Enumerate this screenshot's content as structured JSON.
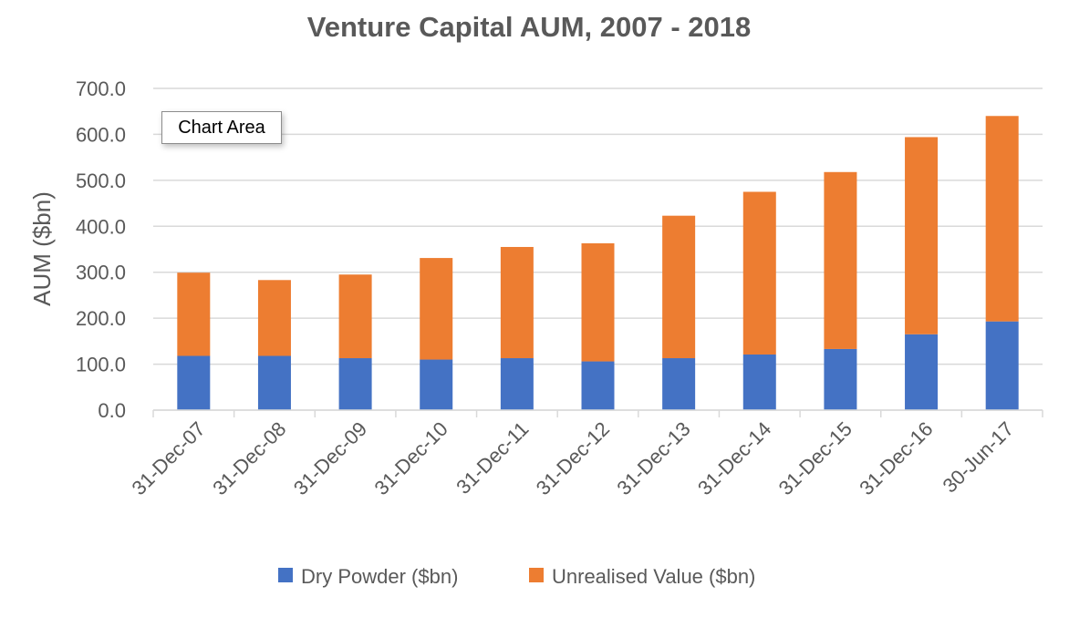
{
  "tooltip": "Chart Area",
  "colors": {
    "dry_powder": "#4472C4",
    "unrealised": "#ED7D31",
    "grid": "#D9D9D9",
    "text": "#595959"
  },
  "chart_data": {
    "type": "bar",
    "stacked": true,
    "title": "Venture Capital AUM, 2007 - 2018",
    "xlabel": "",
    "ylabel": "AUM ($bn)",
    "ylim": [
      0,
      700
    ],
    "yticks": [
      "0.0",
      "100.0",
      "200.0",
      "300.0",
      "400.0",
      "500.0",
      "600.0",
      "700.0"
    ],
    "grid": true,
    "legend_position": "bottom",
    "categories": [
      "31-Dec-07",
      "31-Dec-08",
      "31-Dec-09",
      "31-Dec-10",
      "31-Dec-11",
      "31-Dec-12",
      "31-Dec-13",
      "31-Dec-14",
      "31-Dec-15",
      "31-Dec-16",
      "30-Jun-17"
    ],
    "series": [
      {
        "name": "Dry Powder ($bn)",
        "values": [
          118,
          118,
          113,
          110,
          113,
          106,
          113,
          121,
          133,
          165,
          193
        ]
      },
      {
        "name": "Unrealised Value ($bn)",
        "values": [
          181,
          165,
          182,
          221,
          242,
          257,
          310,
          354,
          385,
          429,
          447
        ]
      }
    ]
  }
}
